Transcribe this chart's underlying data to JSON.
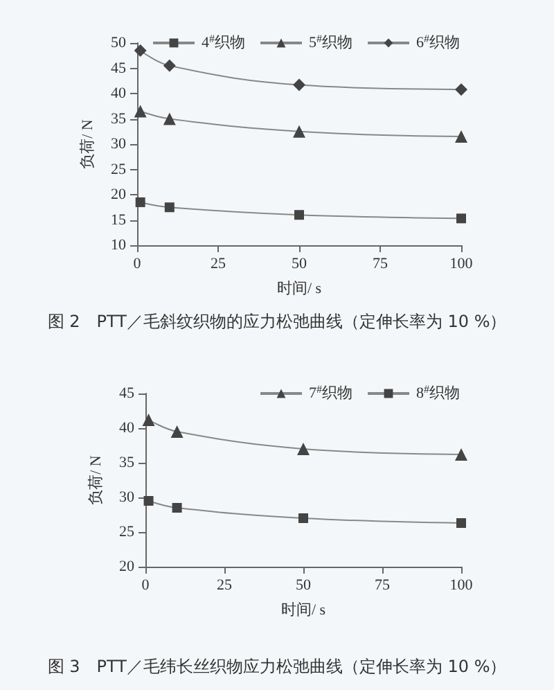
{
  "chart_data": [
    {
      "type": "line",
      "title": "图 2　PTT／毛斜纹织物的应力松弛曲线（定伸长率为 10 %）",
      "xlabel": "时间/ s",
      "ylabel": "负荷/ N",
      "x": [
        1,
        10,
        50,
        100
      ],
      "xlim": [
        0,
        100
      ],
      "xticks": [
        0,
        25,
        50,
        75,
        100
      ],
      "ylim": [
        10,
        50
      ],
      "yticks": [
        10,
        15,
        20,
        25,
        30,
        35,
        40,
        45,
        50
      ],
      "legend": "top right",
      "grid": false,
      "series": [
        {
          "name": "4$^{#}$织物",
          "color": "#444444",
          "marker": "square",
          "values": [
            18.5,
            17.5,
            16,
            15.3
          ]
        },
        {
          "name": "5$^{#}$织物",
          "color": "#444444",
          "marker": "triangle",
          "values": [
            36.5,
            35,
            32.5,
            31.5
          ]
        },
        {
          "name": "6$^{#}$织物",
          "color": "#444444",
          "marker": "diamond",
          "values": [
            48.5,
            45.5,
            41.7,
            40.8
          ]
        }
      ]
    },
    {
      "type": "line",
      "title": "图 3　PTT／毛纬长丝织物应力松弛曲线（定伸长率为 10 %）",
      "xlabel": "时间/ s",
      "ylabel": "负荷/ N",
      "x": [
        1,
        10,
        50,
        100
      ],
      "xlim": [
        0,
        100
      ],
      "xticks": [
        0,
        25,
        50,
        75,
        100
      ],
      "ylim": [
        20,
        45
      ],
      "yticks": [
        20,
        25,
        30,
        35,
        40,
        45
      ],
      "legend": "top right",
      "grid": false,
      "series": [
        {
          "name": "7$^{#}$织物",
          "color": "#444444",
          "marker": "triangle",
          "values": [
            41.2,
            39.5,
            37,
            36.2
          ]
        },
        {
          "name": "8$^{#}$织物",
          "color": "#444444",
          "marker": "square",
          "values": [
            29.5,
            28.5,
            27,
            26.3
          ]
        }
      ]
    }
  ]
}
